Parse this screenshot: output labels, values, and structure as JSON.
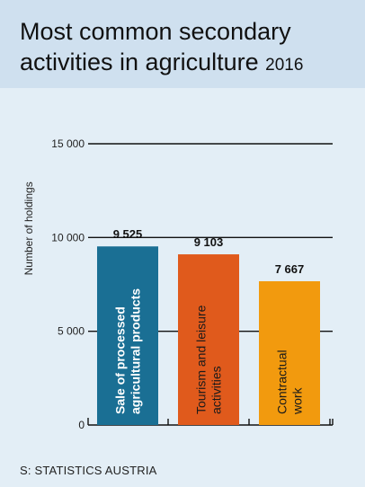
{
  "header": {
    "title_line1": "Most common secondary",
    "title_line2": "activities in agriculture",
    "title_year": "2016"
  },
  "source": "S: STATISTICS AUSTRIA",
  "colors": {
    "header_bg": "#cfe0ef",
    "panel_bg": "#e3eef6",
    "bars": [
      "#1a6f94",
      "#e05a1c",
      "#f29a0e"
    ],
    "bar_text": [
      "#ffffff",
      "#1a1a1a",
      "#1a1a1a"
    ]
  },
  "chart_data": {
    "type": "bar",
    "ylabel": "Number of holdings",
    "ylim": [
      0,
      15000
    ],
    "yticks": [
      0,
      5000,
      10000,
      15000
    ],
    "ytick_labels": [
      "0",
      "5 000",
      "10 000",
      "15 000"
    ],
    "grid": true,
    "categories": [
      [
        "Sale of processed",
        "agricultural products"
      ],
      [
        "Tourism and leisure",
        "activities"
      ],
      [
        "Contractual",
        "work"
      ]
    ],
    "values": [
      9525,
      9103,
      7667
    ],
    "value_labels": [
      "9 525",
      "9 103",
      "7 667"
    ]
  }
}
